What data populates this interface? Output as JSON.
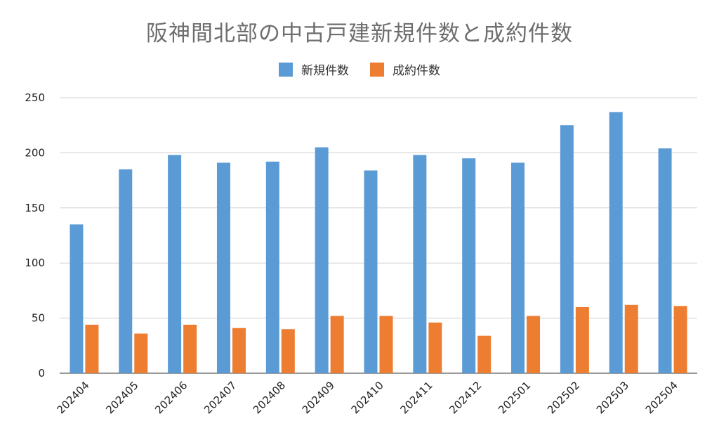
{
  "chart_data": {
    "type": "bar",
    "title": "阪神間北部の中古戸建新規件数と成約件数",
    "xlabel": "",
    "ylabel": "",
    "ylim": [
      0,
      250
    ],
    "yticks": [
      0,
      50,
      100,
      150,
      200,
      250
    ],
    "grid": true,
    "legend_position": "top-center",
    "categories": [
      "202404",
      "202405",
      "202406",
      "202407",
      "202408",
      "202409",
      "202410",
      "202411",
      "202412",
      "202501",
      "202502",
      "202503",
      "202504"
    ],
    "series": [
      {
        "name": "新規件数",
        "color": "#5b9bd5",
        "values": [
          135,
          185,
          198,
          191,
          192,
          205,
          184,
          198,
          195,
          191,
          225,
          237,
          204
        ]
      },
      {
        "name": "成約件数",
        "color": "#ed7d31",
        "values": [
          44,
          36,
          44,
          41,
          40,
          52,
          52,
          46,
          34,
          52,
          60,
          62,
          61
        ]
      }
    ]
  }
}
